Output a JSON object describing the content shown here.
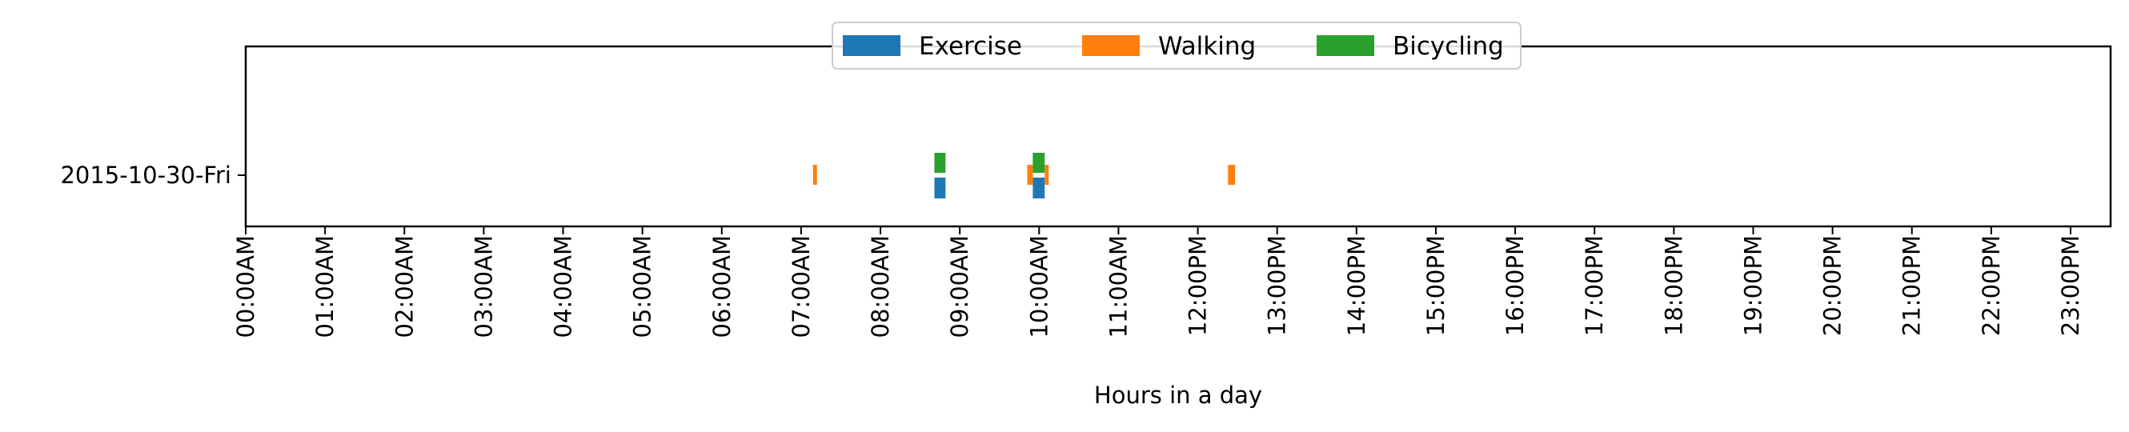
{
  "chart_data": {
    "type": "timeline",
    "xlabel": "Hours in a day",
    "ylabel": "",
    "x_unit": "hours",
    "xlim": [
      0,
      24
    ],
    "x_ticks": [
      {
        "value": 0,
        "label": "00:00AM"
      },
      {
        "value": 1,
        "label": "01:00AM"
      },
      {
        "value": 2,
        "label": "02:00AM"
      },
      {
        "value": 3,
        "label": "03:00AM"
      },
      {
        "value": 4,
        "label": "04:00AM"
      },
      {
        "value": 5,
        "label": "05:00AM"
      },
      {
        "value": 6,
        "label": "06:00AM"
      },
      {
        "value": 7,
        "label": "07:00AM"
      },
      {
        "value": 8,
        "label": "08:00AM"
      },
      {
        "value": 9,
        "label": "09:00AM"
      },
      {
        "value": 10,
        "label": "10:00AM"
      },
      {
        "value": 11,
        "label": "11:00AM"
      },
      {
        "value": 12,
        "label": "12:00PM"
      },
      {
        "value": 13,
        "label": "13:00PM"
      },
      {
        "value": 14,
        "label": "14:00PM"
      },
      {
        "value": 15,
        "label": "15:00PM"
      },
      {
        "value": 16,
        "label": "16:00PM"
      },
      {
        "value": 17,
        "label": "17:00PM"
      },
      {
        "value": 18,
        "label": "18:00PM"
      },
      {
        "value": 19,
        "label": "19:00PM"
      },
      {
        "value": 20,
        "label": "20:00PM"
      },
      {
        "value": 21,
        "label": "21:00PM"
      },
      {
        "value": 22,
        "label": "22:00PM"
      },
      {
        "value": 23,
        "label": "23:00PM"
      }
    ],
    "categories": [
      "2015-10-30-Fri"
    ],
    "legend_position": "top-center",
    "grid": false,
    "series": [
      {
        "name": "Exercise",
        "color": "#1f77b4",
        "lane": "below",
        "intervals": [
          {
            "day": "2015-10-30-Fri",
            "start": 8.68,
            "end": 8.82
          },
          {
            "day": "2015-10-30-Fri",
            "start": 9.92,
            "end": 10.07
          }
        ]
      },
      {
        "name": "Walking",
        "color": "#ff7f0e",
        "lane": "center",
        "intervals": [
          {
            "day": "2015-10-30-Fri",
            "start": 7.15,
            "end": 7.2
          },
          {
            "day": "2015-10-30-Fri",
            "start": 9.85,
            "end": 9.92
          },
          {
            "day": "2015-10-30-Fri",
            "start": 10.07,
            "end": 10.12
          },
          {
            "day": "2015-10-30-Fri",
            "start": 12.38,
            "end": 12.47
          }
        ]
      },
      {
        "name": "Bicycling",
        "color": "#2ca02c",
        "lane": "above",
        "intervals": [
          {
            "day": "2015-10-30-Fri",
            "start": 8.68,
            "end": 8.82
          },
          {
            "day": "2015-10-30-Fri",
            "start": 9.92,
            "end": 10.07
          }
        ]
      }
    ]
  }
}
